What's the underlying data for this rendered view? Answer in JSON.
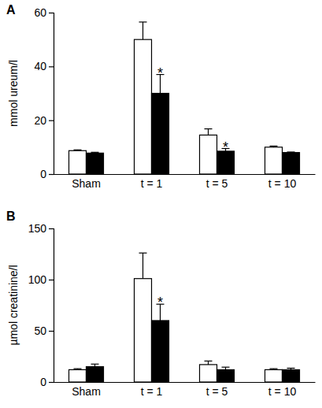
{
  "chart_data": [
    {
      "type": "bar",
      "title": "A",
      "y_label": "mmol ureum/l",
      "categories": [
        "Sham",
        "t = 1",
        "t = 5",
        "t = 10"
      ],
      "series": [
        {
          "color": "#ffffff",
          "values": [
            8.7,
            50,
            14.5,
            10
          ],
          "errors": [
            0.3,
            6.5,
            2.3,
            0.4
          ]
        },
        {
          "color": "#000000",
          "values": [
            7.8,
            30,
            8.5,
            8
          ],
          "errors": [
            0.3,
            7,
            1,
            0.2
          ],
          "annotations": [
            null,
            "*",
            "*",
            null
          ]
        }
      ],
      "ylim": [
        0,
        60
      ],
      "yticks": [
        0,
        20,
        40,
        60
      ]
    },
    {
      "type": "bar",
      "title": "B",
      "y_label": "µmol creatinine/l",
      "categories": [
        "Sham",
        "t = 1",
        "t = 5",
        "t = 10"
      ],
      "series": [
        {
          "color": "#ffffff",
          "values": [
            12,
            101,
            17,
            12
          ],
          "errors": [
            1,
            25,
            3.5,
            1
          ]
        },
        {
          "color": "#000000",
          "values": [
            15,
            60,
            12,
            12
          ],
          "errors": [
            2.5,
            16,
            2.5,
            1.5
          ],
          "annotations": [
            null,
            "*",
            null,
            null
          ]
        }
      ],
      "ylim": [
        0,
        150
      ],
      "yticks": [
        0,
        50,
        100,
        150
      ]
    }
  ]
}
